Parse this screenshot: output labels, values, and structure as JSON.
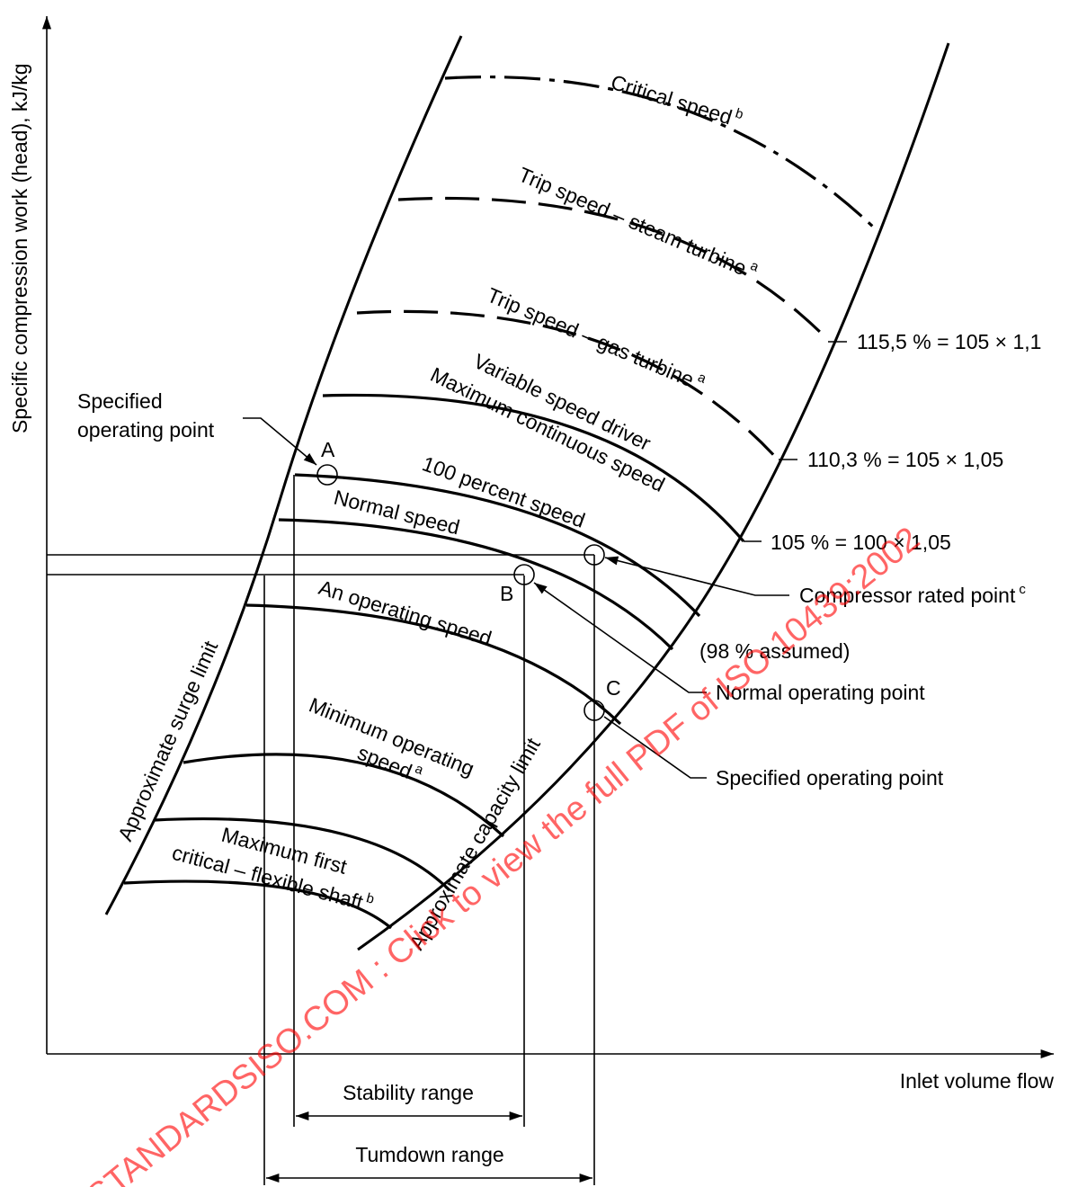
{
  "axes": {
    "y_label": "Specific compression work (head), kJ/kg",
    "x_label": "Inlet volume flow"
  },
  "speed_curves": {
    "critical_speed": "Critical speed",
    "trip_steam": "Trip speed – steam turbine",
    "trip_gas": "Trip speed – gas turbine",
    "variable_driver_1": "Variable speed driver",
    "variable_driver_2": "Maximum continuous speed",
    "percent100": "100 percent speed",
    "normal": "Normal speed",
    "operating": "An operating speed",
    "minimum_1": "Minimum operating",
    "minimum_2": "speed",
    "max_first_1": "Maximum first",
    "max_first_2": "critical – flexible shaft"
  },
  "footnote_marks": {
    "critical": "b",
    "trip_steam": "a",
    "trip_gas": "a",
    "minimum": "a",
    "max_first": "b",
    "rated": "c"
  },
  "limits": {
    "surge": "Approximate surge limit",
    "capacity": "Approximate capacity limit"
  },
  "percent_labels": {
    "p115": "115,5 % = 105 × 1,1",
    "p110": "110,3 % = 105 × 1,05",
    "p105": "105 % = 100 × 1,05",
    "p98": "(98 % assumed)"
  },
  "points": {
    "a": "A",
    "b": "B",
    "c": "C",
    "specified_left_1": "Specified",
    "specified_left_2": "operating point",
    "rated": "Compressor rated point",
    "normal": "Normal operating point",
    "specified_right": "Specified operating point"
  },
  "ranges": {
    "stability": "Stability range",
    "turndown": "Tumdown range"
  },
  "watermark": "STANDARDSISO.COM : Click to view the full PDF of ISO 10439:2002"
}
